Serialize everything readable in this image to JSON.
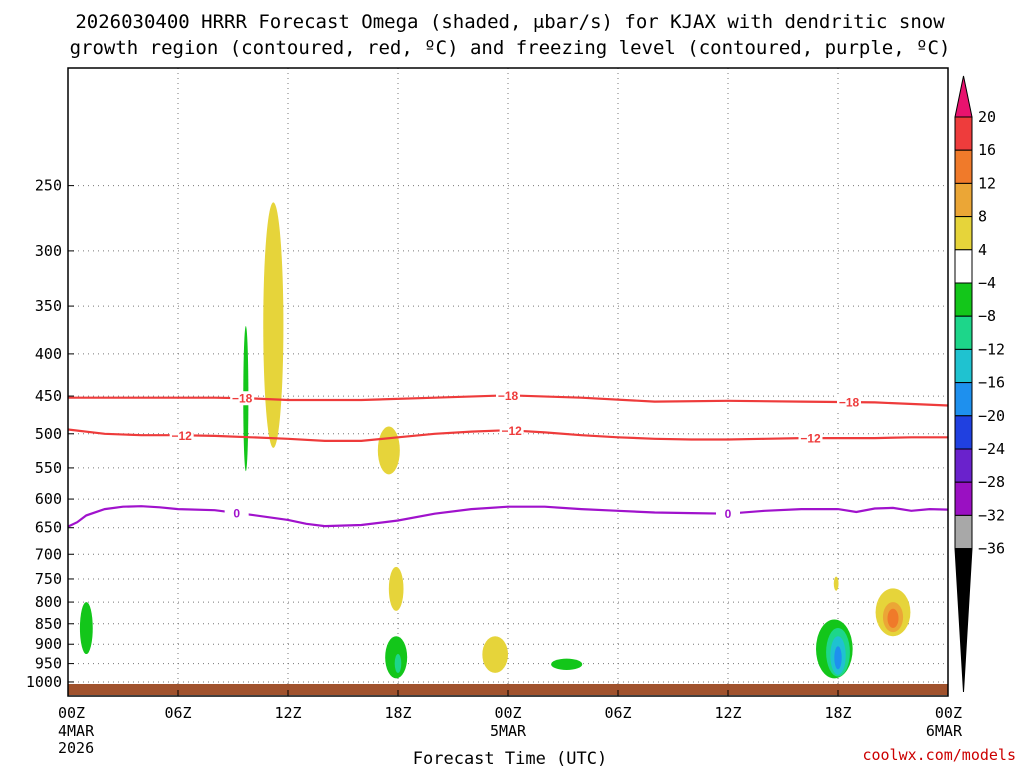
{
  "page": {
    "title_line1": "2026030400 HRRR Forecast Omega (shaded, μbar/s) for KJAX with dendritic snow",
    "title_line2": "growth region (contoured, red, ºC) and freezing level (contoured, purple, ºC)",
    "credit": "coolwx.com/models"
  },
  "chart_data": {
    "type": "time-height cross-section",
    "title": "2026030400 HRRR Forecast Omega (shaded, μbar/s) for KJAX with dendritic snow growth region (contoured, red, ºC) and freezing level (contoured, purple, ºC)",
    "xlabel": "Forecast Time (UTC)",
    "ylabel": "",
    "xlim": [
      0,
      48
    ],
    "ylim": [
      1040,
      180
    ],
    "y_ticks": [
      250,
      300,
      350,
      400,
      450,
      500,
      550,
      600,
      650,
      700,
      750,
      800,
      850,
      900,
      950,
      1000
    ],
    "x_ticks": [
      {
        "hour": 0,
        "label": "00Z",
        "sub1": "4MAR",
        "sub2": "2026"
      },
      {
        "hour": 6,
        "label": "06Z"
      },
      {
        "hour": 12,
        "label": "12Z"
      },
      {
        "hour": 18,
        "label": "18Z"
      },
      {
        "hour": 24,
        "label": "00Z",
        "sub1": "5MAR"
      },
      {
        "hour": 30,
        "label": "06Z"
      },
      {
        "hour": 36,
        "label": "12Z"
      },
      {
        "hour": 42,
        "label": "18Z"
      },
      {
        "hour": 48,
        "label": "00Z",
        "sub1": "6MAR"
      }
    ],
    "colorbar": {
      "labels": [
        "20",
        "16",
        "12",
        "8",
        "4",
        "−4",
        "−8",
        "−12",
        "−16",
        "−20",
        "−24",
        "−28",
        "−32",
        "−36"
      ],
      "colors": [
        "#e8126e",
        "#ee3c3c",
        "#f07a2a",
        "#eba636",
        "#e6d43a",
        "#ffffff",
        "#13c61a",
        "#1dd68a",
        "#1fc2d0",
        "#1e90ee",
        "#2040e0",
        "#6a22cc",
        "#9a10c2",
        "#a8a8a8",
        "#000000"
      ]
    },
    "contours": [
      {
        "name": "-18 C",
        "label": "−18",
        "color": "#ee3b3b",
        "x": [
          0,
          4,
          8,
          10,
          12,
          16,
          20,
          24,
          28,
          32,
          36,
          40,
          44,
          48
        ],
        "y": [
          452,
          452,
          452,
          453,
          455,
          455,
          452,
          449,
          452,
          457,
          456,
          457,
          458,
          462
        ],
        "label_hours": [
          9.5,
          24,
          42.6
        ]
      },
      {
        "name": "-12 C",
        "label": "−12",
        "color": "#ee3b3b",
        "x": [
          0,
          2,
          4,
          6,
          8,
          10,
          12,
          14,
          16,
          18,
          20,
          22,
          24,
          26,
          28,
          30,
          32,
          34,
          36,
          38,
          40,
          42,
          44,
          46,
          48
        ],
        "y": [
          494,
          500,
          502,
          502,
          503,
          505,
          507,
          510,
          510,
          505,
          500,
          497,
          495,
          498,
          502,
          505,
          507,
          508,
          508,
          507,
          506,
          506,
          506,
          505,
          505
        ],
        "label_hours": [
          6.2,
          24.2,
          40.5
        ]
      },
      {
        "name": "0 C freezing level",
        "label": "0",
        "color": "#a012cc",
        "x": [
          0,
          0.5,
          1,
          2,
          3,
          4,
          5,
          6,
          8,
          10,
          12,
          13,
          14,
          16,
          18,
          20,
          22,
          24,
          26,
          28,
          30,
          32,
          34,
          36,
          38,
          40,
          42,
          43,
          44,
          45,
          46,
          47,
          48
        ],
        "y": [
          648,
          640,
          628,
          617,
          613,
          612,
          614,
          617,
          619,
          627,
          636,
          643,
          647,
          645,
          637,
          625,
          617,
          613,
          613,
          617,
          620,
          623,
          624,
          625,
          620,
          617,
          617,
          622,
          616,
          615,
          620,
          617,
          618
        ],
        "label_hours": [
          9.2,
          36.0
        ]
      }
    ],
    "omega_cells": [
      {
        "hour": 1.0,
        "hw": 0.35,
        "p_top": 800,
        "p_bot": 925,
        "value": -6,
        "color": "#13c61a"
      },
      {
        "hour": 9.7,
        "hw": 0.14,
        "p_top": 370,
        "p_bot": 555,
        "value": -6,
        "color": "#13c61a"
      },
      {
        "hour": 11.2,
        "hw": 0.55,
        "p_top": 262,
        "p_bot": 520,
        "value": 6,
        "color": "#e6d43a"
      },
      {
        "hour": 17.5,
        "hw": 0.6,
        "p_top": 490,
        "p_bot": 560,
        "value": 6,
        "color": "#e6d43a"
      },
      {
        "hour": 17.9,
        "hw": 0.4,
        "p_top": 725,
        "p_bot": 820,
        "value": 6,
        "color": "#e6d43a"
      },
      {
        "hour": 17.9,
        "hw": 0.6,
        "p_top": 880,
        "p_bot": 990,
        "value": -6,
        "color": "#13c61a"
      },
      {
        "hour": 18.0,
        "hw": 0.18,
        "p_top": 925,
        "p_bot": 975,
        "value": -10,
        "color": "#1dd68a"
      },
      {
        "hour": 23.3,
        "hw": 0.7,
        "p_top": 880,
        "p_bot": 975,
        "value": 6,
        "color": "#e6d43a"
      },
      {
        "hour": 27.2,
        "hw": 0.85,
        "p_top": 937,
        "p_bot": 967,
        "value": -6,
        "color": "#13c61a"
      },
      {
        "hour": 41.8,
        "hw": 1.0,
        "p_top": 840,
        "p_bot": 990,
        "value": -6,
        "color": "#13c61a"
      },
      {
        "hour": 42.0,
        "hw": 0.65,
        "p_top": 860,
        "p_bot": 985,
        "value": -10,
        "color": "#1dd68a"
      },
      {
        "hour": 42.0,
        "hw": 0.42,
        "p_top": 880,
        "p_bot": 980,
        "value": -14,
        "color": "#1fc2d0"
      },
      {
        "hour": 42.0,
        "hw": 0.2,
        "p_top": 905,
        "p_bot": 965,
        "value": -18,
        "color": "#1e90ee"
      },
      {
        "hour": 41.9,
        "hw": 0.13,
        "p_top": 745,
        "p_bot": 775,
        "value": 6,
        "color": "#e6d43a"
      },
      {
        "hour": 45.0,
        "hw": 0.95,
        "p_top": 770,
        "p_bot": 880,
        "value": 6,
        "color": "#e6d43a"
      },
      {
        "hour": 45.0,
        "hw": 0.55,
        "p_top": 800,
        "p_bot": 870,
        "value": 10,
        "color": "#eba636"
      },
      {
        "hour": 45.0,
        "hw": 0.3,
        "p_top": 815,
        "p_bot": 860,
        "value": 13,
        "color": "#f07a2a"
      }
    ],
    "ground": {
      "label": "surface",
      "color": "#a0522d"
    }
  }
}
